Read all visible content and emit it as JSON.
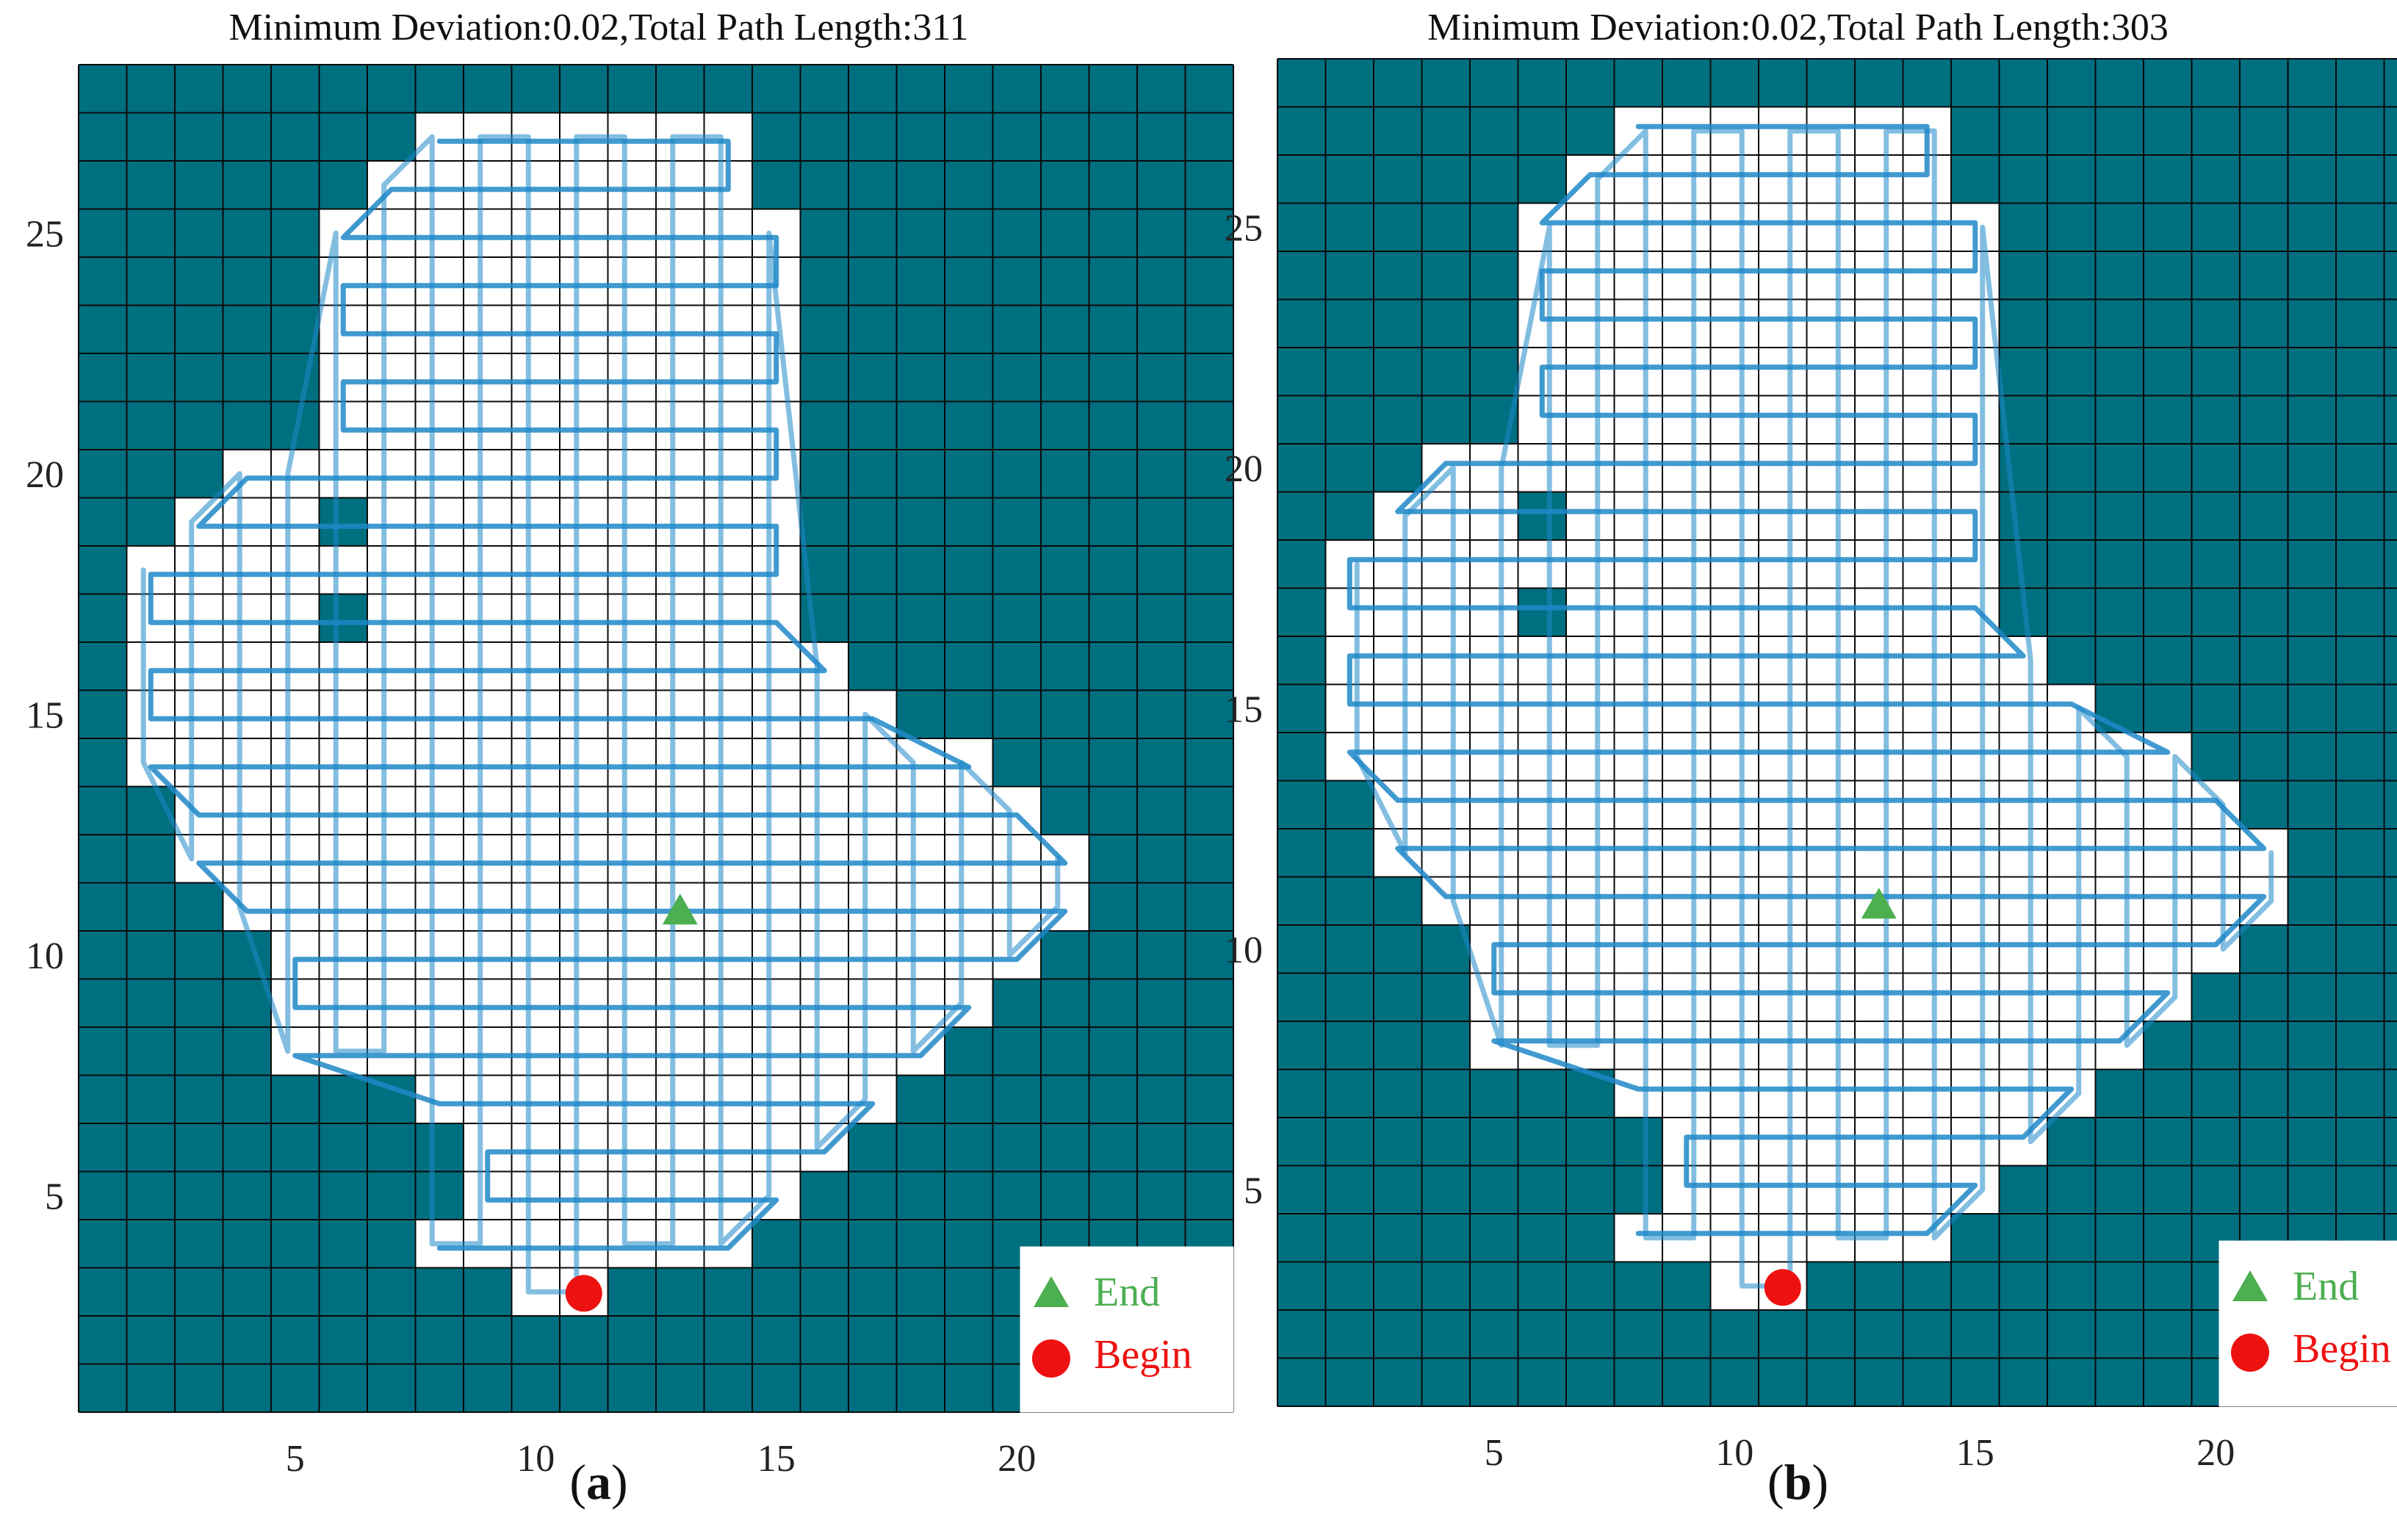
{
  "figure": {
    "colors": {
      "obstacle": "#006F80",
      "free": "#FFFFFF",
      "grid_line": "#0a0a0a",
      "path": "#1E88C8",
      "end_marker": "#4CAF50",
      "begin_marker": "#EE1111",
      "end_text": "#4CAF50",
      "begin_text": "#EE1111"
    },
    "panels": [
      {
        "id": "a",
        "title": "Minimum Deviation:0.02,Total Path Length:311",
        "label_paren_open": "(",
        "label_letter": "a",
        "label_paren_close": ")",
        "x_ticks": [
          "5",
          "10",
          "15",
          "20"
        ],
        "y_ticks": [
          "5",
          "10",
          "15",
          "20",
          "25"
        ],
        "legend": {
          "end": "End",
          "begin": "Begin"
        },
        "end_marker_icon": "triangle-icon",
        "begin_marker_icon": "circle-icon"
      },
      {
        "id": "b",
        "title": "Minimum Deviation:0.02,Total Path Length:303",
        "label_paren_open": "(",
        "label_letter": "b",
        "label_paren_close": ")",
        "x_ticks": [
          "5",
          "10",
          "15",
          "20"
        ],
        "y_ticks": [
          "5",
          "10",
          "15",
          "20",
          "25"
        ],
        "legend": {
          "end": "End",
          "begin": "Begin"
        },
        "end_marker_icon": "triangle-icon",
        "begin_marker_icon": "circle-icon"
      }
    ],
    "grid": {
      "x_range": [
        1,
        24
      ],
      "y_range": [
        1,
        28
      ],
      "free_region_by_row": [
        {
          "y": 28,
          "intervals": []
        },
        {
          "y": 27,
          "intervals": [
            [
              8,
              14
            ]
          ]
        },
        {
          "y": 26,
          "intervals": [
            [
              7,
              14
            ]
          ]
        },
        {
          "y": 25,
          "intervals": [
            [
              6,
              15
            ]
          ]
        },
        {
          "y": 24,
          "intervals": [
            [
              6,
              15
            ]
          ]
        },
        {
          "y": 23,
          "intervals": [
            [
              6,
              15
            ]
          ]
        },
        {
          "y": 22,
          "intervals": [
            [
              6,
              15
            ]
          ]
        },
        {
          "y": 21,
          "intervals": [
            [
              6,
              15
            ]
          ]
        },
        {
          "y": 20,
          "intervals": [
            [
              4,
              15
            ]
          ]
        },
        {
          "y": 19,
          "intervals": [
            [
              3,
              5
            ],
            [
              7,
              15
            ]
          ]
        },
        {
          "y": 18,
          "intervals": [
            [
              2,
              5
            ],
            [
              6,
              6
            ],
            [
              7,
              15
            ]
          ]
        },
        {
          "y": 17,
          "intervals": [
            [
              2,
              5
            ],
            [
              7,
              15
            ]
          ]
        },
        {
          "y": 16,
          "intervals": [
            [
              2,
              16
            ]
          ]
        },
        {
          "y": 15,
          "intervals": [
            [
              2,
              17
            ]
          ]
        },
        {
          "y": 14,
          "intervals": [
            [
              2,
              19
            ]
          ]
        },
        {
          "y": 13,
          "intervals": [
            [
              3,
              20
            ]
          ]
        },
        {
          "y": 12,
          "intervals": [
            [
              3,
              21
            ]
          ]
        },
        {
          "y": 11,
          "intervals": [
            [
              4,
              21
            ]
          ]
        },
        {
          "y": 10,
          "intervals": [
            [
              5,
              20
            ]
          ]
        },
        {
          "y": 9,
          "intervals": [
            [
              5,
              19
            ]
          ]
        },
        {
          "y": 8,
          "intervals": [
            [
              5,
              18
            ]
          ]
        },
        {
          "y": 7,
          "intervals": [
            [
              8,
              17
            ]
          ]
        },
        {
          "y": 6,
          "intervals": [
            [
              9,
              16
            ]
          ]
        },
        {
          "y": 5,
          "intervals": [
            [
              9,
              15
            ]
          ]
        },
        {
          "y": 4,
          "intervals": [
            [
              8,
              14
            ]
          ]
        },
        {
          "y": 3,
          "intervals": [
            [
              10,
              11
            ]
          ]
        },
        {
          "y": 2,
          "intervals": []
        },
        {
          "y": 1,
          "intervals": []
        }
      ],
      "end_cell": [
        13,
        11
      ],
      "begin_cell": [
        11,
        3
      ]
    }
  }
}
